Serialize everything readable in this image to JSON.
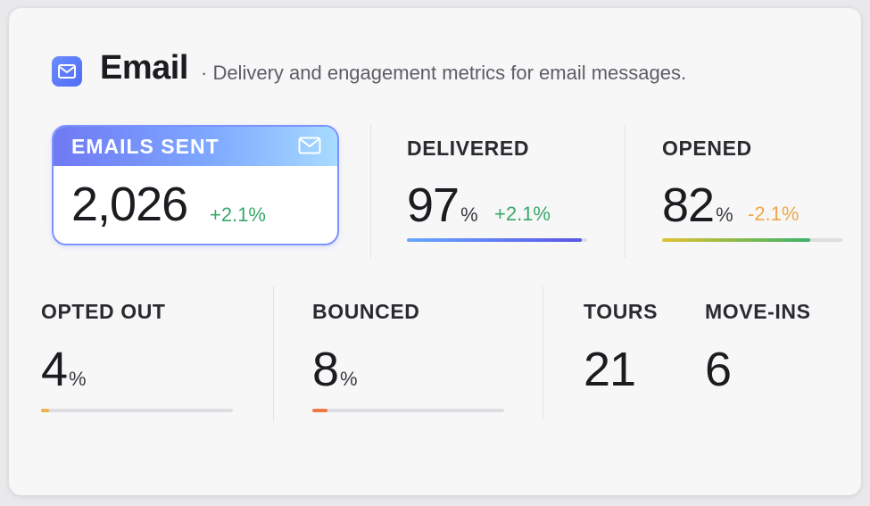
{
  "header": {
    "title": "Email",
    "subtitle": "· Delivery and engagement metrics for email messages.",
    "icon": "mail-icon",
    "icon_color": "#5b7cfa"
  },
  "metrics": {
    "emails_sent": {
      "label": "EMAILS SENT",
      "value": "2,026",
      "delta": "+2.1%",
      "icon": "mail-icon"
    },
    "delivered": {
      "label": "DELIVERED",
      "value": "97",
      "unit": "%",
      "delta": "+2.1%",
      "progress": 0.97
    },
    "opened": {
      "label": "OPENED",
      "value": "82",
      "unit": "%",
      "delta": "-2.1%",
      "progress": 0.82
    },
    "opted_out": {
      "label": "OPTED OUT",
      "value": "4",
      "unit": "%",
      "progress": 0.04
    },
    "bounced": {
      "label": "BOUNCED",
      "value": "8",
      "unit": "%",
      "progress": 0.08
    },
    "tours": {
      "label": "TOURS",
      "value": "21"
    },
    "move_ins": {
      "label": "MOVE-INS",
      "value": "6"
    }
  },
  "colors": {
    "positive": "#3aa86b",
    "negative": "#f0a64a",
    "delivered_bar": [
      "#6aa7ff",
      "#5a55e6"
    ],
    "opened_bar": [
      "#e1c330",
      "#3bb26a"
    ],
    "opted_out_bar": "#f0b14a",
    "bounced_bar": "#f07a45"
  }
}
